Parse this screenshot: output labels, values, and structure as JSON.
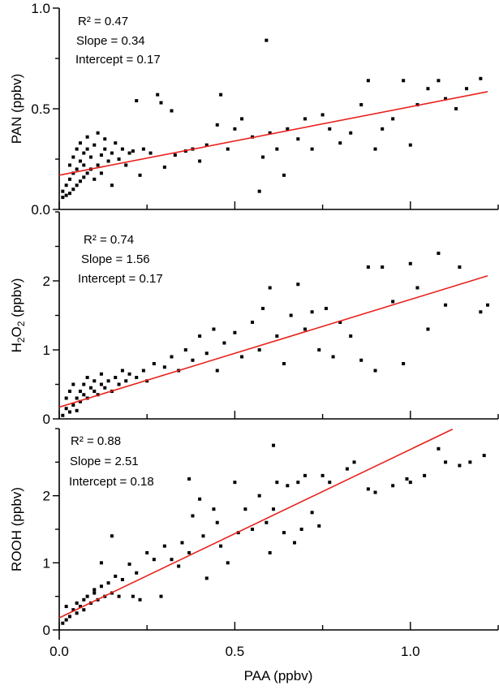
{
  "chart_data": {
    "type": "scatter",
    "xlabel": "PAA (ppbv)",
    "xlim": [
      0,
      1.25
    ],
    "xticks": [
      "0.0",
      "0.5",
      "1.0"
    ],
    "xtick_values": [
      0,
      0.5,
      1.0
    ],
    "fit_color": "#e8221c",
    "point_color": "#000000",
    "panels": [
      {
        "ylabel": "PAN (ppbv)",
        "ylim": [
          0,
          1.0
        ],
        "yticks": [
          "0.0",
          "0.5",
          "1.0"
        ],
        "ytick_values": [
          0,
          0.5,
          1.0
        ],
        "annotations": [
          "R² = 0.47",
          "Slope = 0.34",
          "Intercept = 0.17"
        ],
        "fit": {
          "slope": 0.34,
          "intercept": 0.17,
          "x_range": [
            0,
            1.22
          ]
        },
        "points": [
          [
            0.01,
            0.06
          ],
          [
            0.01,
            0.09
          ],
          [
            0.02,
            0.07
          ],
          [
            0.02,
            0.12
          ],
          [
            0.03,
            0.08
          ],
          [
            0.03,
            0.15
          ],
          [
            0.03,
            0.22
          ],
          [
            0.04,
            0.1
          ],
          [
            0.04,
            0.18
          ],
          [
            0.04,
            0.26
          ],
          [
            0.05,
            0.12
          ],
          [
            0.05,
            0.2
          ],
          [
            0.05,
            0.3
          ],
          [
            0.06,
            0.14
          ],
          [
            0.06,
            0.24
          ],
          [
            0.06,
            0.33
          ],
          [
            0.07,
            0.16
          ],
          [
            0.07,
            0.22
          ],
          [
            0.07,
            0.28
          ],
          [
            0.08,
            0.18
          ],
          [
            0.08,
            0.3
          ],
          [
            0.08,
            0.36
          ],
          [
            0.09,
            0.2
          ],
          [
            0.09,
            0.26
          ],
          [
            0.1,
            0.15
          ],
          [
            0.1,
            0.32
          ],
          [
            0.11,
            0.22
          ],
          [
            0.11,
            0.38
          ],
          [
            0.12,
            0.27
          ],
          [
            0.12,
            0.18
          ],
          [
            0.13,
            0.3
          ],
          [
            0.13,
            0.35
          ],
          [
            0.14,
            0.24
          ],
          [
            0.15,
            0.28
          ],
          [
            0.15,
            0.12
          ],
          [
            0.16,
            0.33
          ],
          [
            0.17,
            0.25
          ],
          [
            0.18,
            0.3
          ],
          [
            0.19,
            0.22
          ],
          [
            0.2,
            0.28
          ],
          [
            0.21,
            0.29
          ],
          [
            0.22,
            0.54
          ],
          [
            0.23,
            0.17
          ],
          [
            0.24,
            0.3
          ],
          [
            0.26,
            0.28
          ],
          [
            0.28,
            0.57
          ],
          [
            0.29,
            0.53
          ],
          [
            0.3,
            0.21
          ],
          [
            0.32,
            0.49
          ],
          [
            0.33,
            0.27
          ],
          [
            0.36,
            0.29
          ],
          [
            0.38,
            0.3
          ],
          [
            0.4,
            0.24
          ],
          [
            0.42,
            0.32
          ],
          [
            0.45,
            0.42
          ],
          [
            0.46,
            0.57
          ],
          [
            0.48,
            0.3
          ],
          [
            0.5,
            0.4
          ],
          [
            0.52,
            0.45
          ],
          [
            0.55,
            0.36
          ],
          [
            0.57,
            0.09
          ],
          [
            0.58,
            0.26
          ],
          [
            0.59,
            0.84
          ],
          [
            0.6,
            0.38
          ],
          [
            0.62,
            0.3
          ],
          [
            0.64,
            0.17
          ],
          [
            0.65,
            0.4
          ],
          [
            0.68,
            0.35
          ],
          [
            0.7,
            0.45
          ],
          [
            0.72,
            0.3
          ],
          [
            0.75,
            0.47
          ],
          [
            0.77,
            0.4
          ],
          [
            0.8,
            0.33
          ],
          [
            0.83,
            0.38
          ],
          [
            0.86,
            0.52
          ],
          [
            0.88,
            0.64
          ],
          [
            0.9,
            0.3
          ],
          [
            0.92,
            0.4
          ],
          [
            0.95,
            0.45
          ],
          [
            0.98,
            0.64
          ],
          [
            1.0,
            0.32
          ],
          [
            1.02,
            0.52
          ],
          [
            1.05,
            0.6
          ],
          [
            1.08,
            0.64
          ],
          [
            1.1,
            0.55
          ],
          [
            1.13,
            0.5
          ],
          [
            1.16,
            0.6
          ],
          [
            1.2,
            0.65
          ]
        ]
      },
      {
        "ylabel": "H2O2 (ppbv)",
        "ylim": [
          0,
          3
        ],
        "yticks": [
          "0",
          "1",
          "2"
        ],
        "ytick_values": [
          0,
          1,
          2
        ],
        "annotations": [
          "R² = 0.74",
          "Slope = 1.56",
          "Intercept = 0.17"
        ],
        "fit": {
          "slope": 1.56,
          "intercept": 0.17,
          "x_range": [
            0,
            1.22
          ]
        },
        "points": [
          [
            0.01,
            0.05
          ],
          [
            0.02,
            0.15
          ],
          [
            0.02,
            0.3
          ],
          [
            0.03,
            0.1
          ],
          [
            0.03,
            0.4
          ],
          [
            0.04,
            0.2
          ],
          [
            0.04,
            0.5
          ],
          [
            0.05,
            0.3
          ],
          [
            0.05,
            0.12
          ],
          [
            0.06,
            0.4
          ],
          [
            0.06,
            0.25
          ],
          [
            0.07,
            0.5
          ],
          [
            0.07,
            0.35
          ],
          [
            0.08,
            0.3
          ],
          [
            0.08,
            0.6
          ],
          [
            0.09,
            0.45
          ],
          [
            0.1,
            0.4
          ],
          [
            0.1,
            0.55
          ],
          [
            0.11,
            0.35
          ],
          [
            0.12,
            0.5
          ],
          [
            0.12,
            0.65
          ],
          [
            0.13,
            0.45
          ],
          [
            0.14,
            0.55
          ],
          [
            0.15,
            0.4
          ],
          [
            0.16,
            0.6
          ],
          [
            0.17,
            0.5
          ],
          [
            0.18,
            0.7
          ],
          [
            0.19,
            0.55
          ],
          [
            0.2,
            0.65
          ],
          [
            0.22,
            0.6
          ],
          [
            0.24,
            0.7
          ],
          [
            0.25,
            0.55
          ],
          [
            0.27,
            0.8
          ],
          [
            0.3,
            0.75
          ],
          [
            0.32,
            0.9
          ],
          [
            0.34,
            0.7
          ],
          [
            0.36,
            1.0
          ],
          [
            0.38,
            0.85
          ],
          [
            0.4,
            1.2
          ],
          [
            0.42,
            0.95
          ],
          [
            0.44,
            1.3
          ],
          [
            0.45,
            0.7
          ],
          [
            0.47,
            1.1
          ],
          [
            0.5,
            1.25
          ],
          [
            0.52,
            0.9
          ],
          [
            0.55,
            1.4
          ],
          [
            0.57,
            1.0
          ],
          [
            0.58,
            1.6
          ],
          [
            0.6,
            1.9
          ],
          [
            0.62,
            1.2
          ],
          [
            0.64,
            0.8
          ],
          [
            0.66,
            1.5
          ],
          [
            0.68,
            1.95
          ],
          [
            0.7,
            1.3
          ],
          [
            0.72,
            1.55
          ],
          [
            0.74,
            1.0
          ],
          [
            0.76,
            1.6
          ],
          [
            0.78,
            0.9
          ],
          [
            0.8,
            1.4
          ],
          [
            0.83,
            1.2
          ],
          [
            0.86,
            0.85
          ],
          [
            0.88,
            2.2
          ],
          [
            0.9,
            0.7
          ],
          [
            0.92,
            2.2
          ],
          [
            0.95,
            1.7
          ],
          [
            0.98,
            0.8
          ],
          [
            1.0,
            2.25
          ],
          [
            1.02,
            1.9
          ],
          [
            1.05,
            1.3
          ],
          [
            1.08,
            2.4
          ],
          [
            1.1,
            1.65
          ],
          [
            1.14,
            2.2
          ],
          [
            1.2,
            1.55
          ],
          [
            1.22,
            1.65
          ]
        ]
      },
      {
        "ylabel": "ROOH (ppbv)",
        "ylim": [
          0,
          3
        ],
        "yticks": [
          "0",
          "1",
          "2"
        ],
        "ytick_values": [
          0,
          1,
          2
        ],
        "annotations": [
          "R² = 0.88",
          "Slope = 2.51",
          "Intercept = 0.18"
        ],
        "fit": {
          "slope": 2.51,
          "intercept": 0.18,
          "x_range": [
            0,
            1.12
          ]
        },
        "points": [
          [
            0.01,
            0.1
          ],
          [
            0.02,
            0.15
          ],
          [
            0.02,
            0.35
          ],
          [
            0.03,
            0.2
          ],
          [
            0.04,
            0.3
          ],
          [
            0.05,
            0.25
          ],
          [
            0.05,
            0.4
          ],
          [
            0.06,
            0.35
          ],
          [
            0.07,
            0.45
          ],
          [
            0.07,
            0.3
          ],
          [
            0.08,
            0.5
          ],
          [
            0.09,
            0.4
          ],
          [
            0.1,
            0.55
          ],
          [
            0.1,
            0.6
          ],
          [
            0.11,
            0.45
          ],
          [
            0.12,
            0.65
          ],
          [
            0.12,
            1.0
          ],
          [
            0.13,
            0.5
          ],
          [
            0.14,
            0.7
          ],
          [
            0.15,
            0.55
          ],
          [
            0.15,
            1.4
          ],
          [
            0.16,
            0.8
          ],
          [
            0.17,
            0.5
          ],
          [
            0.18,
            0.75
          ],
          [
            0.2,
            0.98
          ],
          [
            0.21,
            0.5
          ],
          [
            0.22,
            0.85
          ],
          [
            0.23,
            0.45
          ],
          [
            0.25,
            1.15
          ],
          [
            0.27,
            1.05
          ],
          [
            0.29,
            0.5
          ],
          [
            0.3,
            1.25
          ],
          [
            0.32,
            1.05
          ],
          [
            0.34,
            0.95
          ],
          [
            0.35,
            1.3
          ],
          [
            0.37,
            1.15
          ],
          [
            0.37,
            2.25
          ],
          [
            0.38,
            1.7
          ],
          [
            0.4,
            1.95
          ],
          [
            0.41,
            1.4
          ],
          [
            0.42,
            0.77
          ],
          [
            0.44,
            1.8
          ],
          [
            0.45,
            1.6
          ],
          [
            0.46,
            1.25
          ],
          [
            0.48,
            1.0
          ],
          [
            0.5,
            2.2
          ],
          [
            0.51,
            1.45
          ],
          [
            0.53,
            1.8
          ],
          [
            0.55,
            1.5
          ],
          [
            0.57,
            2.0
          ],
          [
            0.59,
            1.6
          ],
          [
            0.6,
            1.15
          ],
          [
            0.61,
            2.75
          ],
          [
            0.61,
            1.8
          ],
          [
            0.62,
            2.2
          ],
          [
            0.64,
            1.45
          ],
          [
            0.65,
            2.15
          ],
          [
            0.67,
            1.3
          ],
          [
            0.68,
            2.2
          ],
          [
            0.69,
            1.5
          ],
          [
            0.7,
            2.3
          ],
          [
            0.72,
            1.75
          ],
          [
            0.74,
            1.55
          ],
          [
            0.75,
            2.3
          ],
          [
            0.77,
            2.2
          ],
          [
            0.82,
            2.4
          ],
          [
            0.84,
            2.5
          ],
          [
            0.88,
            2.1
          ],
          [
            0.9,
            2.05
          ],
          [
            0.95,
            2.15
          ],
          [
            0.99,
            2.25
          ],
          [
            1.0,
            2.2
          ],
          [
            1.04,
            2.3
          ],
          [
            1.08,
            2.7
          ],
          [
            1.1,
            2.5
          ],
          [
            1.14,
            2.45
          ],
          [
            1.17,
            2.5
          ],
          [
            1.21,
            2.6
          ]
        ]
      }
    ]
  }
}
